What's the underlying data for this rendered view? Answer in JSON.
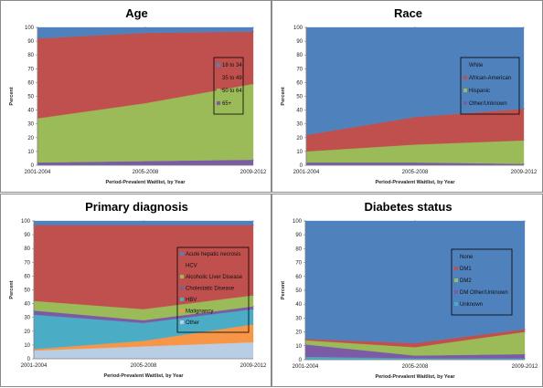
{
  "chart_data": [
    {
      "type": "area",
      "title": "Age",
      "xlabel": "Period-Prevalent Waitlist, by Year",
      "ylabel": "Percent",
      "ylim": [
        0,
        100
      ],
      "yticks": [
        0,
        10,
        20,
        30,
        40,
        50,
        60,
        70,
        80,
        90,
        100
      ],
      "categories": [
        "2001-2004",
        "2005-2008",
        "2009-2012"
      ],
      "legend_position": "right",
      "series": [
        {
          "name": "65+",
          "color": "#7b5ba6",
          "values": [
            2,
            3,
            4
          ]
        },
        {
          "name": "50 to 64",
          "color": "#9bbb59",
          "values": [
            32,
            42,
            55
          ]
        },
        {
          "name": "35 to 49",
          "color": "#c0504d",
          "values": [
            58,
            51,
            38
          ]
        },
        {
          "name": "18 to 34",
          "color": "#4f81bd",
          "values": [
            8,
            4,
            3
          ]
        }
      ]
    },
    {
      "type": "area",
      "title": "Race",
      "xlabel": "Period-Prevalent Waitlist, by Year",
      "ylabel": "Percent",
      "ylim": [
        0,
        100
      ],
      "yticks": [
        0,
        10,
        20,
        30,
        40,
        50,
        60,
        70,
        80,
        90,
        100
      ],
      "categories": [
        "2001-2004",
        "2005-2008",
        "2009-2012"
      ],
      "legend_position": "right",
      "series": [
        {
          "name": "Other/Unknown",
          "color": "#7b5ba6",
          "values": [
            2,
            2,
            1
          ]
        },
        {
          "name": "Hispanic",
          "color": "#9bbb59",
          "values": [
            8,
            13,
            17
          ]
        },
        {
          "name": "African-American",
          "color": "#c0504d",
          "values": [
            12,
            20,
            23
          ]
        },
        {
          "name": "White",
          "color": "#4f81bd",
          "values": [
            78,
            65,
            59
          ]
        }
      ]
    },
    {
      "type": "area",
      "title": "Primary diagnosis",
      "xlabel": "Period-Prevalent Waitlist, by Year",
      "ylabel": "Percent",
      "ylim": [
        0,
        100
      ],
      "yticks": [
        0,
        10,
        20,
        30,
        40,
        50,
        60,
        70,
        80,
        90,
        100
      ],
      "categories": [
        "2001-2004",
        "2005-2008",
        "2009-2012"
      ],
      "legend_position": "right",
      "series": [
        {
          "name": "Other",
          "color": "#b9cde5",
          "values": [
            6,
            9,
            12
          ]
        },
        {
          "name": "Malignancy",
          "color": "#f79646",
          "values": [
            1,
            4,
            13
          ]
        },
        {
          "name": "HBV",
          "color": "#4bacc6",
          "values": [
            25,
            13,
            11
          ]
        },
        {
          "name": "Cholestatic Disease",
          "color": "#7b5ba6",
          "values": [
            3,
            2,
            2
          ]
        },
        {
          "name": "Alcoholic Liver Disease",
          "color": "#9bbb59",
          "values": [
            7,
            8,
            8
          ]
        },
        {
          "name": "HCV",
          "color": "#c0504d",
          "values": [
            55,
            61,
            51
          ]
        },
        {
          "name": "Acute hepatic necrosis",
          "color": "#4f81bd",
          "values": [
            3,
            3,
            3
          ]
        }
      ]
    },
    {
      "type": "area",
      "title": "Diabetes status",
      "xlabel": "Period-Prevalent Waitlist, by Year",
      "ylabel": "Percent",
      "ylim": [
        0,
        100
      ],
      "yticks": [
        0,
        10,
        20,
        30,
        40,
        50,
        60,
        70,
        80,
        90,
        100
      ],
      "categories": [
        "2001-2004",
        "2005-2008",
        "2009-2012"
      ],
      "legend_position": "right",
      "series": [
        {
          "name": "Unknown",
          "color": "#4bacc6",
          "values": [
            2,
            1,
            1
          ]
        },
        {
          "name": "DM Other/Unknown",
          "color": "#7b5ba6",
          "values": [
            9,
            2,
            3
          ]
        },
        {
          "name": "DM2",
          "color": "#9bbb59",
          "values": [
            3,
            6,
            16
          ]
        },
        {
          "name": "DM1",
          "color": "#c0504d",
          "values": [
            1,
            3,
            2
          ]
        },
        {
          "name": "None",
          "color": "#4f81bd",
          "values": [
            85,
            88,
            78
          ]
        }
      ]
    }
  ]
}
